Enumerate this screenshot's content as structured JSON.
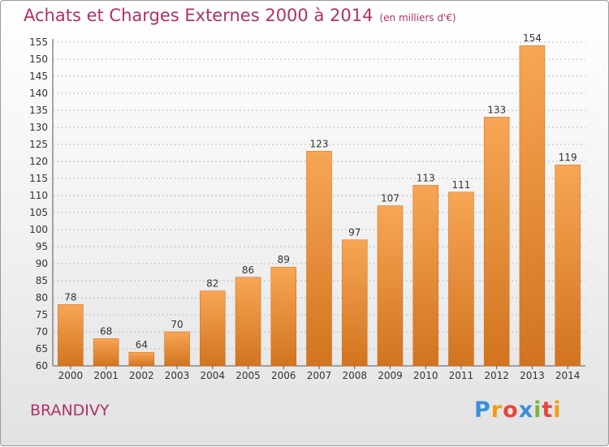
{
  "header": {
    "title": "Achats et Charges Externes 2000 à 2014",
    "subtitle": "(en milliers d'€)"
  },
  "footer": {
    "place": "BRANDIVY",
    "logo_letters": [
      "P",
      "r",
      "o",
      "x",
      "i",
      "t",
      "i"
    ],
    "logo_colors": [
      "#3a8fd8",
      "#f39c12",
      "#e8463a",
      "#3a8fd8",
      "#7cb342",
      "#e8463a",
      "#f39c12"
    ]
  },
  "colors": {
    "title": "#b0306a",
    "bar_light": "#f7a655",
    "bar_dark": "#d2741f",
    "grid": "#bbbbbb",
    "axis": "#555555"
  },
  "chart_data": {
    "type": "bar",
    "title": "Achats et Charges Externes 2000 à 2014",
    "subtitle": "(en milliers d'€)",
    "xlabel": "",
    "ylabel": "",
    "categories": [
      "2000",
      "2001",
      "2002",
      "2003",
      "2004",
      "2005",
      "2006",
      "2007",
      "2008",
      "2009",
      "2010",
      "2011",
      "2012",
      "2013",
      "2014"
    ],
    "values": [
      78,
      68,
      64,
      70,
      82,
      86,
      89,
      123,
      97,
      107,
      113,
      111,
      133,
      154,
      119
    ],
    "ylim": [
      60,
      155
    ],
    "yticks": [
      60,
      65,
      70,
      75,
      80,
      85,
      90,
      95,
      100,
      105,
      110,
      115,
      120,
      125,
      130,
      135,
      140,
      145,
      150,
      155
    ],
    "grid": true,
    "legend": "none"
  }
}
